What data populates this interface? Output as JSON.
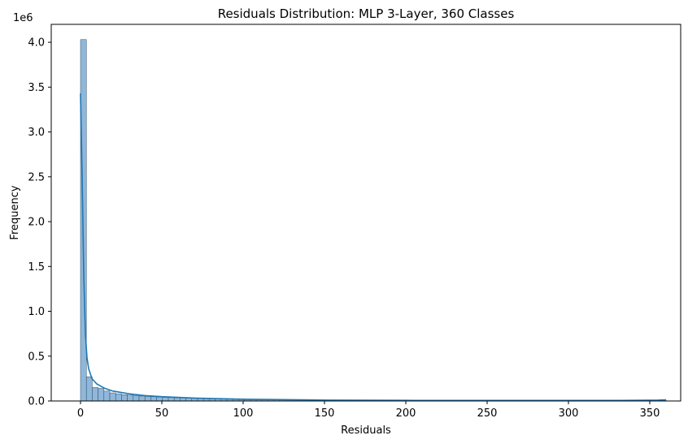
{
  "chart_data": {
    "type": "bar",
    "title": "Residuals Distribution: MLP 3-Layer, 360 Classes",
    "xlabel": "Residuals",
    "ylabel": "Frequency",
    "offset_label": "1e6",
    "xlim": [
      -18,
      369
    ],
    "ylim": [
      0,
      4.2
    ],
    "x_ticks": [
      0,
      50,
      100,
      150,
      200,
      250,
      300,
      350
    ],
    "y_ticks": [
      0.0,
      0.5,
      1.0,
      1.5,
      2.0,
      2.5,
      3.0,
      3.5,
      4.0
    ],
    "y_tick_labels": [
      "0.0",
      "0.5",
      "1.0",
      "1.5",
      "2.0",
      "2.5",
      "3.0",
      "3.5",
      "4.0"
    ],
    "bin_width": 3.6,
    "bin_start": 0,
    "bin_values": [
      4.03,
      0.27,
      0.15,
      0.14,
      0.11,
      0.09,
      0.08,
      0.07,
      0.065,
      0.06,
      0.055,
      0.05,
      0.047,
      0.044,
      0.041,
      0.038,
      0.036,
      0.034,
      0.032,
      0.03,
      0.028,
      0.027,
      0.026,
      0.025,
      0.024,
      0.023,
      0.022,
      0.021,
      0.02,
      0.019,
      0.018,
      0.017,
      0.016,
      0.016,
      0.015,
      0.015,
      0.014,
      0.014,
      0.013,
      0.013,
      0.012,
      0.012,
      0.011,
      0.011,
      0.011,
      0.01,
      0.01,
      0.01,
      0.009,
      0.009,
      0.009,
      0.009,
      0.008,
      0.008,
      0.008,
      0.008,
      0.008,
      0.007,
      0.007,
      0.007,
      0.007,
      0.007,
      0.007,
      0.006,
      0.006,
      0.006,
      0.006,
      0.006,
      0.006,
      0.006,
      0.006,
      0.005,
      0.005,
      0.005,
      0.005,
      0.005,
      0.005,
      0.005,
      0.005,
      0.005,
      0.005,
      0.005,
      0.005,
      0.005,
      0.005,
      0.005,
      0.005,
      0.005,
      0.005,
      0.005,
      0.005,
      0.005,
      0.005,
      0.005,
      0.005,
      0.006,
      0.006,
      0.007,
      0.009,
      0.012
    ],
    "kde": {
      "x": [
        0,
        1,
        2,
        3,
        4,
        5,
        7,
        10,
        15,
        20,
        30,
        40,
        50,
        70,
        100,
        150,
        200,
        250,
        300,
        340,
        355,
        360
      ],
      "y": [
        3.43,
        2.5,
        1.4,
        0.75,
        0.48,
        0.36,
        0.25,
        0.19,
        0.14,
        0.11,
        0.08,
        0.06,
        0.048,
        0.032,
        0.02,
        0.01,
        0.007,
        0.006,
        0.006,
        0.007,
        0.01,
        0.013
      ]
    },
    "colors": {
      "bar_fill": "#8fb7da",
      "bar_edge": "#2c4a66",
      "kde_line": "#1f77b4"
    }
  }
}
